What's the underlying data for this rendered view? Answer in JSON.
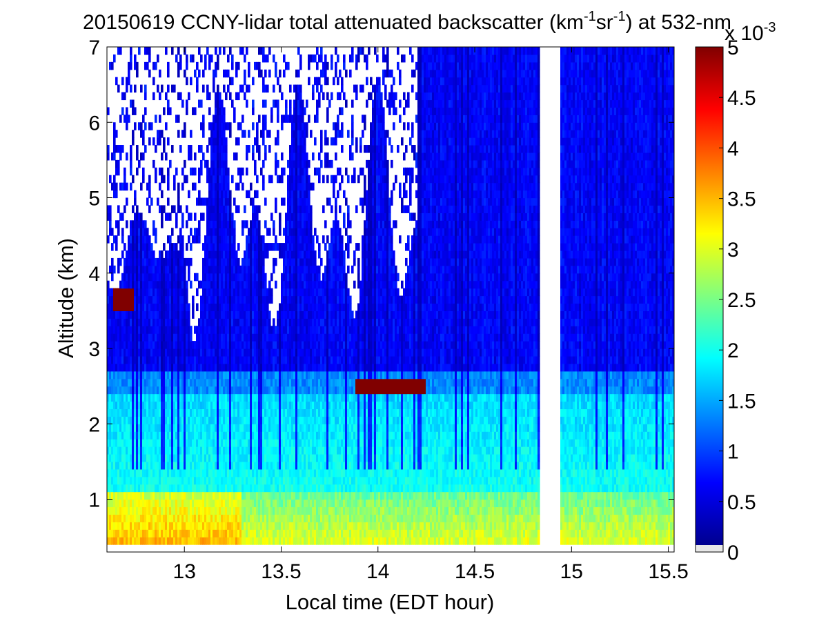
{
  "chart_data": {
    "type": "heatmap",
    "title": {
      "date": "20150619",
      "text": "20150619 CCNY-lidar total attenuated backscatter (km-1sr-1) at 532-nm",
      "main": "CCNY-lidar total attenuated backscatter (km",
      "sup1": "-1",
      "mid": "sr",
      "sup2": "-1",
      "tail": ") at 532-nm"
    },
    "xlabel": "Local time (EDT hour)",
    "ylabel": "Altitude (km)",
    "xlim": [
      12.6,
      15.53
    ],
    "ylim": [
      0.3,
      7
    ],
    "x_ticks": [
      "13",
      "13.5",
      "14",
      "14.5",
      "15",
      "15.5"
    ],
    "y_ticks": [
      "1",
      "2",
      "3",
      "4",
      "5",
      "6",
      "7"
    ],
    "colorbar": {
      "range": [
        0,
        5
      ],
      "ticks": [
        "0",
        "0.5",
        "1",
        "1.5",
        "2",
        "2.5",
        "3",
        "3.5",
        "4",
        "4.5",
        "5"
      ],
      "exponent_base": "x 10",
      "exponent": "-3",
      "colormap": "jet",
      "zero_color": "#e8e8e8"
    },
    "data_gap_x": [
      14.84,
      14.94
    ],
    "lowest_altitude_km": 0.42,
    "features": {
      "boundary_layer_top_km": 2.4,
      "aerosol_layer_top_km": 2.75,
      "elevated_layer": {
        "x": [
          12.63,
          12.74
        ],
        "y": [
          3.55,
          3.75
        ],
        "value": 5
      },
      "dense_layer": {
        "x": [
          13.88,
          14.25
        ],
        "y": [
          2.38,
          2.6
        ],
        "value": 5
      }
    }
  }
}
